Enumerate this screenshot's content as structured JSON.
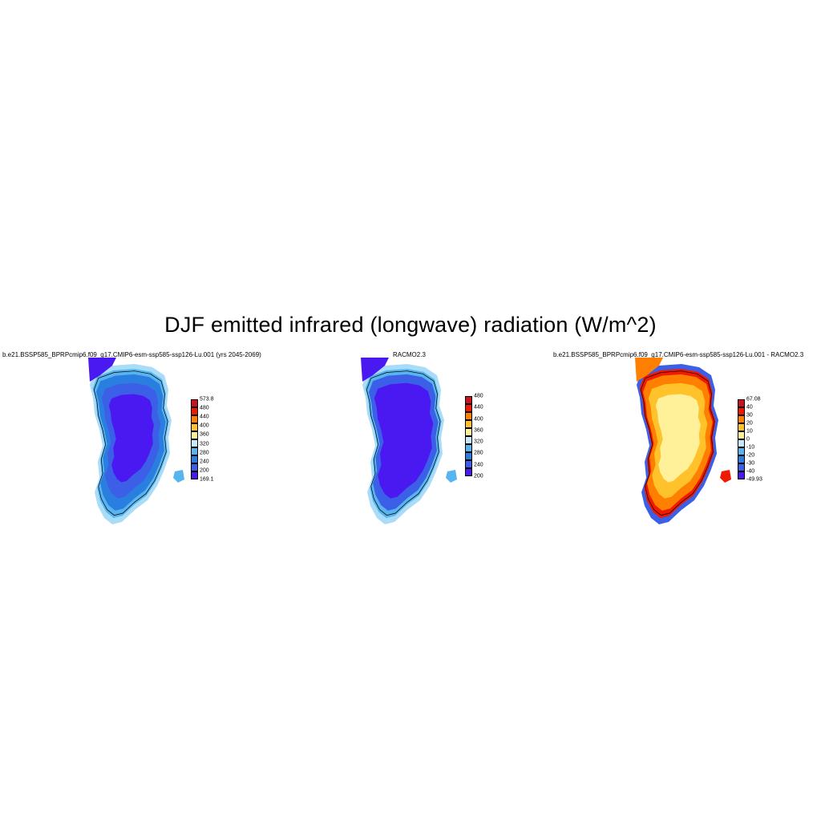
{
  "figure": {
    "title": "DJF emitted infrared (longwave) radiation (W/m^2)"
  },
  "panels": [
    {
      "title": "b.e21.BSSP585_BPRPcmip6.f09_g17.CMIP6-esm-ssp585-ssp126-Lu.001 (yrs 2045-2069)",
      "colorbar": {
        "labels": [
          "573.8",
          "480",
          "440",
          "400",
          "360",
          "320",
          "280",
          "240",
          "200",
          "169.1"
        ],
        "colors": [
          "#c8141e",
          "#f01a00",
          "#ff7f00",
          "#ffc22a",
          "#fff09a",
          "#c8e8ff",
          "#58b4ee",
          "#2a7ee0",
          "#3b5fe6",
          "#4a18f0"
        ]
      },
      "fill_colors": {
        "interior": "#4a18f0",
        "mid": "#3b5fe6",
        "edge": "#2a7ee0",
        "coast": "#58b4ee",
        "outer": "#a8dcf8"
      }
    },
    {
      "title": "RACMO2.3",
      "colorbar": {
        "labels": [
          "480",
          "440",
          "400",
          "360",
          "320",
          "280",
          "240",
          "200"
        ],
        "colors": [
          "#c8141e",
          "#f01a00",
          "#ff7f00",
          "#ffc22a",
          "#fff09a",
          "#c8e8ff",
          "#58b4ee",
          "#2a7ee0",
          "#3b5fe6",
          "#4a18f0"
        ]
      },
      "fill_colors": {
        "interior": "#4a18f0",
        "mid": "#4a18f0",
        "edge": "#3b5fe6",
        "coast": "#58b4ee",
        "outer": "#a8dcf8"
      }
    },
    {
      "title": "b.e21.BSSP585_BPRPcmip6.f09_g17.CMIP6-esm-ssp585-ssp126-Lu.001 - RACMO2.3",
      "colorbar": {
        "labels": [
          "67.08",
          "40",
          "30",
          "20",
          "10",
          "0",
          "-10",
          "-20",
          "-30",
          "-40",
          "-49.93"
        ],
        "colors": [
          "#c8141e",
          "#f01a00",
          "#ff7f00",
          "#ffc22a",
          "#fff09a",
          "#c8e8ff",
          "#58b4ee",
          "#2a7ee0",
          "#3b5fe6",
          "#4a18f0"
        ]
      },
      "fill_colors": {
        "interior": "#fff09a",
        "mid": "#ffc22a",
        "edge": "#ff7f00",
        "coast": "#f01a00",
        "outer": "#3b5fe6"
      }
    }
  ]
}
